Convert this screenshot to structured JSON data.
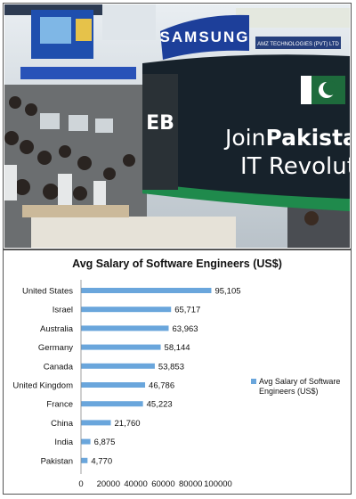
{
  "photo": {
    "sign_line1_a": "Join",
    "sign_line1_b": "Pakistan",
    "sign_line2": "IT Revolution",
    "brand_banner": "SAMSUNG",
    "small_banner": "AMZ TECHNOLOGIES (PVT) LTD",
    "logo_letters": "EB",
    "colors": {
      "sign_dark": "#17222b",
      "sign_green": "#1f8a4c",
      "banner_blue": "#1d3f9a"
    }
  },
  "chart_data": {
    "type": "bar",
    "orientation": "horizontal",
    "title": "Avg Salary of Software Engineers (US$)",
    "categories": [
      "United States",
      "Israel",
      "Australia",
      "Germany",
      "Canada",
      "United Kingdom",
      "France",
      "China",
      "India",
      "Pakistan"
    ],
    "series": [
      {
        "name": "Avg Salary of Software Engineers (US$)",
        "values": [
          95105,
          65717,
          63963,
          58144,
          53853,
          46786,
          45223,
          21760,
          6875,
          4770
        ],
        "value_labels": [
          "95,105",
          "65,717",
          "63,963",
          "58,144",
          "53,853",
          "46,786",
          "45,223",
          "21,760",
          "6,875",
          "4,770"
        ]
      }
    ],
    "xlim": [
      0,
      100000
    ],
    "x_ticks": [
      0,
      20000,
      40000,
      60000,
      80000,
      100000
    ],
    "legend": "right",
    "bar_color": "#6aa6dc",
    "grid": false
  }
}
